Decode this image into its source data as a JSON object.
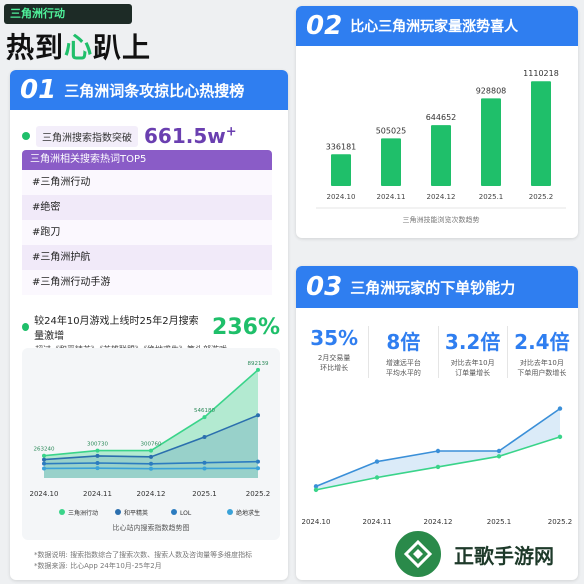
{
  "header": {
    "tag": "三角洲行动",
    "headline_pre": "热到",
    "headline_hl": "心",
    "headline_post": "趴上"
  },
  "panel1": {
    "num": "01",
    "title": "三角洲词条攻掠比心热搜榜",
    "search_label": "三角洲搜索指数突破",
    "search_value": "661.5w",
    "search_sup": "+",
    "top_header": "三角洲相关搜索热词TOP5",
    "top_items": [
      "#三角洲行动",
      "#绝密",
      "#跑刀",
      "#三角洲护航",
      "#三角洲行动手游"
    ],
    "growth_text": "较24年10月游戏上线时25年2月搜索量激增",
    "growth_pct": "236%",
    "growth_sub": "超过《和平精英》《英雄联盟》《绝地求生》等头部游戏",
    "notes": [
      "*数据说明: 搜索指数综合了搜索次数、搜索人数及咨询量等多维度指标",
      "*数据来源: 比心App 24年10月-25年2月"
    ]
  },
  "chart1": {
    "type": "area",
    "caption": "比心站内搜索指数趋势图",
    "categories": [
      "2024.10",
      "2024.11",
      "2024.12",
      "2025.1",
      "2025.2"
    ],
    "labels": [
      "263240",
      "300730",
      "300760",
      "546180",
      "892139"
    ],
    "series": [
      {
        "name": "三角洲行动",
        "color": "#3ad48a",
        "values": [
          263240,
          300730,
          300760,
          546180,
          892139
        ]
      },
      {
        "name": "和平精英",
        "color": "#2b6fae",
        "values": [
          235000,
          262000,
          255000,
          400000,
          560000
        ]
      },
      {
        "name": "LOL",
        "color": "#2b7cc0",
        "values": [
          205000,
          210000,
          204000,
          212000,
          220000
        ]
      },
      {
        "name": "绝地求生",
        "color": "#3aa2d8",
        "values": [
          170000,
          172000,
          168000,
          170000,
          171000
        ]
      }
    ],
    "ylim": [
      100000,
      950000
    ]
  },
  "panel2": {
    "num": "02",
    "title": "比心三角洲玩家量涨势喜人"
  },
  "chart2": {
    "type": "bar",
    "caption": "三角洲技能浏览次数趋势",
    "categories": [
      "2024.10",
      "2024.11",
      "2024.12",
      "2025.1",
      "2025.2"
    ],
    "values": [
      336181,
      505025,
      644652,
      928808,
      1110218
    ],
    "color": "#1fbf6a",
    "ylim": [
      0,
      1250000
    ]
  },
  "panel3": {
    "num": "03",
    "title": "三角洲玩家的下单钞能力",
    "stats": [
      {
        "value": "35%",
        "desc1": "2月交易量",
        "desc2": "环比增长"
      },
      {
        "value": "8倍",
        "desc1": "增速远平台",
        "desc2": "平均水平的"
      },
      {
        "value": "3.2倍",
        "desc1": "对比去年10月",
        "desc2": "订单量增长"
      },
      {
        "value": "2.4倍",
        "desc1": "对比去年10月",
        "desc2": "下单用户数增长"
      }
    ]
  },
  "chart3": {
    "type": "line",
    "categories": [
      "2024.10",
      "2024.11",
      "2024.12",
      "2025.1",
      "2025.2"
    ],
    "series": [
      {
        "color": "#3a8fd8",
        "values": [
          1.0,
          1.7,
          2.0,
          2.0,
          3.2
        ]
      },
      {
        "color": "#3ad48a",
        "values": [
          0.9,
          1.25,
          1.55,
          1.85,
          2.4
        ]
      }
    ],
    "ylim": [
      0.5,
      3.5
    ]
  },
  "watermark": {
    "text": "正歌手游网"
  }
}
